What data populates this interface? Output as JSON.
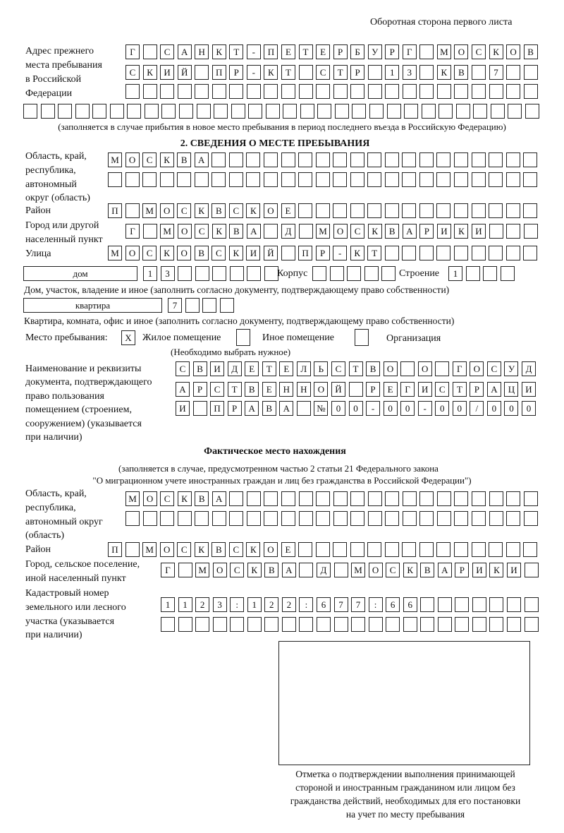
{
  "header": "Оборотная сторона первого листа",
  "prev_address": {
    "label": [
      "Адрес прежнего",
      "места пребывания",
      "в Российской",
      "Федерации"
    ],
    "rows": [
      [
        "Г",
        "",
        "С",
        "А",
        "Н",
        "К",
        "Т",
        "-",
        "П",
        "Е",
        "Т",
        "Е",
        "Р",
        "Б",
        "У",
        "Р",
        "Г",
        "",
        "М",
        "О",
        "С",
        "К",
        "О",
        "В"
      ],
      [
        "С",
        "К",
        "И",
        "Й",
        "",
        "П",
        "Р",
        "-",
        "К",
        "Т",
        "",
        "С",
        "Т",
        "Р",
        "",
        "1",
        "3",
        "",
        "К",
        "В",
        "",
        "7",
        "",
        ""
      ],
      [
        "",
        "",
        "",
        "",
        "",
        "",
        "",
        "",
        "",
        "",
        "",
        "",
        "",
        "",
        "",
        "",
        "",
        "",
        "",
        "",
        "",
        "",
        "",
        ""
      ],
      [
        "",
        "",
        "",
        "",
        "",
        "",
        "",
        "",
        "",
        "",
        "",
        "",
        "",
        "",
        "",
        "",
        "",
        "",
        "",
        "",
        "",
        "",
        "",
        "",
        "",
        "",
        "",
        "",
        "",
        ""
      ]
    ],
    "note": "(заполняется в случае прибытия в новое место пребывания в период последнего въезда в Российскую Федерацию)"
  },
  "section2": {
    "title": "2. СВЕДЕНИЯ О МЕСТЕ ПРЕБЫВАНИЯ",
    "region_label": [
      "Область, край,",
      "республика,",
      "автономный",
      "округ (область)"
    ],
    "region_rows": [
      [
        "М",
        "О",
        "С",
        "К",
        "В",
        "А",
        "",
        "",
        "",
        "",
        "",
        "",
        "",
        "",
        "",
        "",
        "",
        "",
        "",
        "",
        "",
        "",
        "",
        "",
        ""
      ],
      [
        "",
        "",
        "",
        "",
        "",
        "",
        "",
        "",
        "",
        "",
        "",
        "",
        "",
        "",
        "",
        "",
        "",
        "",
        "",
        "",
        "",
        "",
        "",
        "",
        ""
      ]
    ],
    "district_label": "Район",
    "district_row": [
      "П",
      "",
      "М",
      "О",
      "С",
      "К",
      "В",
      "С",
      "К",
      "О",
      "Е",
      "",
      "",
      "",
      "",
      "",
      "",
      "",
      "",
      "",
      "",
      "",
      "",
      "",
      ""
    ],
    "city_label": [
      "Город или другой",
      "населенный пункт"
    ],
    "city_row": [
      "Г",
      "",
      "М",
      "О",
      "С",
      "К",
      "В",
      "А",
      "",
      "Д",
      "",
      "М",
      "О",
      "С",
      "К",
      "В",
      "А",
      "Р",
      "И",
      "К",
      "И",
      "",
      "",
      ""
    ],
    "street_label": "Улица",
    "street_row": [
      "М",
      "О",
      "С",
      "К",
      "О",
      "В",
      "С",
      "К",
      "И",
      "Й",
      "",
      "П",
      "Р",
      "-",
      "К",
      "Т",
      "",
      "",
      "",
      "",
      "",
      "",
      "",
      "",
      ""
    ],
    "house_type": "дом",
    "house_row": [
      "1",
      "3",
      "",
      "",
      "",
      "",
      "",
      ""
    ],
    "korpus_label": "Корпус",
    "korpus_row": [
      "",
      "",
      "",
      "",
      ""
    ],
    "building_label": "Строение",
    "building_row": [
      "1",
      "",
      "",
      ""
    ],
    "house_note": "Дом, участок, владение и иное (заполнить согласно документу, подтверждающему право собственности)",
    "apt_type": "квартира",
    "apt_row": [
      "7",
      "",
      "",
      ""
    ],
    "apt_note": "Квартира, комната, офис и иное (заполнить согласно документу, подтверждающему право собственности)",
    "stay_label": "Место пребывания:",
    "options": [
      {
        "label": "Жилое помещение",
        "mark": "X"
      },
      {
        "label": "Иное помещение",
        "mark": ""
      },
      {
        "label": "Организация",
        "mark": ""
      }
    ],
    "choose_note": "(Необходимо выбрать нужное)",
    "doc_label": [
      "Наименование и реквизиты",
      "документа, подтверждающего",
      "право пользования",
      "помещением (строением,",
      "сооружением) (указывается",
      "при наличии)"
    ],
    "doc_rows": [
      [
        "С",
        "В",
        "И",
        "Д",
        "Е",
        "Т",
        "Е",
        "Л",
        "Ь",
        "С",
        "Т",
        "В",
        "О",
        "",
        "О",
        "",
        "Г",
        "О",
        "С",
        "У",
        "Д"
      ],
      [
        "А",
        "Р",
        "С",
        "Т",
        "В",
        "Е",
        "Н",
        "Н",
        "О",
        "Й",
        "",
        "Р",
        "Е",
        "Г",
        "И",
        "С",
        "Т",
        "Р",
        "А",
        "Ц",
        "И"
      ],
      [
        "И",
        "",
        "П",
        "Р",
        "А",
        "В",
        "А",
        "",
        "№",
        "0",
        "0",
        "-",
        "0",
        "0",
        "-",
        "0",
        "0",
        "/",
        "0",
        "0",
        "0"
      ]
    ]
  },
  "actual": {
    "title": "Фактическое место нахождения",
    "note1": "(заполняется в случае, предусмотренном частью 2 статьи 21 Федерального закона",
    "note2": "\"О миграционном учете иностранных граждан и лиц без гражданства в Российской Федерации\")",
    "region_label": [
      "Область, край,",
      "республика,",
      "автономный округ",
      "(область)"
    ],
    "region_rows": [
      [
        "М",
        "О",
        "С",
        "К",
        "В",
        "А",
        "",
        "",
        "",
        "",
        "",
        "",
        "",
        "",
        "",
        "",
        "",
        "",
        "",
        "",
        "",
        "",
        "",
        ""
      ],
      [
        "",
        "",
        "",
        "",
        "",
        "",
        "",
        "",
        "",
        "",
        "",
        "",
        "",
        "",
        "",
        "",
        "",
        "",
        "",
        "",
        "",
        "",
        "",
        ""
      ]
    ],
    "district_label": "Район",
    "district_row": [
      "П",
      "",
      "М",
      "О",
      "С",
      "К",
      "В",
      "С",
      "К",
      "О",
      "Е",
      "",
      "",
      "",
      "",
      "",
      "",
      "",
      "",
      "",
      "",
      "",
      "",
      "",
      ""
    ],
    "city_label": [
      "Город, сельское поселение,",
      "иной населенный пункт"
    ],
    "city_row": [
      "Г",
      "",
      "М",
      "О",
      "С",
      "К",
      "В",
      "А",
      "",
      "Д",
      "",
      "М",
      "О",
      "С",
      "К",
      "В",
      "А",
      "Р",
      "И",
      "К",
      "И",
      ""
    ],
    "cadastral_label": [
      "Кадастровый номер",
      "земельного или лесного",
      "участка (указывается",
      "при наличии)"
    ],
    "cadastral_rows": [
      [
        "1",
        "1",
        "2",
        "3",
        ":",
        "1",
        "2",
        "2",
        ":",
        "6",
        "7",
        "7",
        ":",
        "6",
        "6",
        "",
        "",
        "",
        "",
        "",
        "",
        ""
      ],
      [
        "",
        "",
        "",
        "",
        "",
        "",
        "",
        "",
        "",
        "",
        "",
        "",
        "",
        "",
        "",
        "",
        "",
        "",
        "",
        "",
        "",
        ""
      ]
    ]
  },
  "stamp_caption": [
    "Отметка о подтверждении выполнения принимающей",
    "стороной и иностранным гражданином или лицом без",
    "гражданства действий, необходимых для его постановки",
    "на учет по месту пребывания"
  ]
}
